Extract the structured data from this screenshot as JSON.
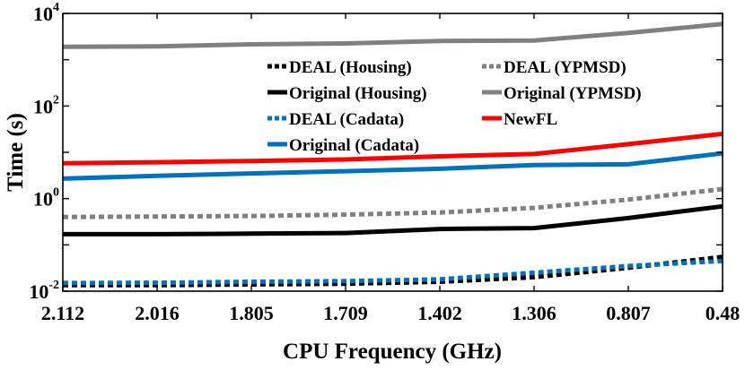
{
  "chart_data": {
    "type": "line",
    "xlabel": "CPU Frequency (GHz)",
    "ylabel": "Time (s)",
    "yscale": "log",
    "ylim": [
      0.01,
      10000
    ],
    "categories": [
      "2.112",
      "2.016",
      "1.805",
      "1.709",
      "1.402",
      "1.306",
      "0.807",
      "0.48"
    ],
    "y_ticks": [
      {
        "value": 0.01,
        "base": "10",
        "exp": "-2"
      },
      {
        "value": 1,
        "base": "10",
        "exp": "0"
      },
      {
        "value": 100,
        "base": "10",
        "exp": "2"
      },
      {
        "value": 10000,
        "base": "10",
        "exp": "4"
      }
    ],
    "grid": false,
    "legend_position": "upper-center",
    "series": [
      {
        "name": "DEAL (Housing)",
        "color": "#000000",
        "dashed": true,
        "values": [
          0.0135,
          0.0135,
          0.014,
          0.0145,
          0.016,
          0.02,
          0.032,
          0.055
        ]
      },
      {
        "name": "DEAL (YPMSD)",
        "color": "#808080",
        "dashed": true,
        "values": [
          0.4,
          0.41,
          0.42,
          0.45,
          0.5,
          0.63,
          0.95,
          1.6
        ]
      },
      {
        "name": "Original (Housing)",
        "color": "#000000",
        "dashed": false,
        "values": [
          0.17,
          0.17,
          0.175,
          0.18,
          0.22,
          0.23,
          0.38,
          0.68
        ]
      },
      {
        "name": "Original (YPMSD)",
        "color": "#808080",
        "dashed": false,
        "values": [
          1900,
          1950,
          2150,
          2250,
          2550,
          2600,
          3800,
          5900
        ]
      },
      {
        "name": "DEAL (Cadata)",
        "color": "#0072BD",
        "dashed": true,
        "values": [
          0.015,
          0.0152,
          0.016,
          0.0165,
          0.018,
          0.025,
          0.035,
          0.045
        ]
      },
      {
        "name": "NewFL",
        "color": "#FF0000",
        "dashed": false,
        "values": [
          5.8,
          6.1,
          6.5,
          7.0,
          8.2,
          9.2,
          15,
          25
        ]
      },
      {
        "name": "Original (Cadata)",
        "color": "#0072BD",
        "dashed": false,
        "values": [
          2.7,
          3.1,
          3.5,
          3.9,
          4.4,
          5.3,
          5.5,
          9.5
        ]
      }
    ]
  }
}
